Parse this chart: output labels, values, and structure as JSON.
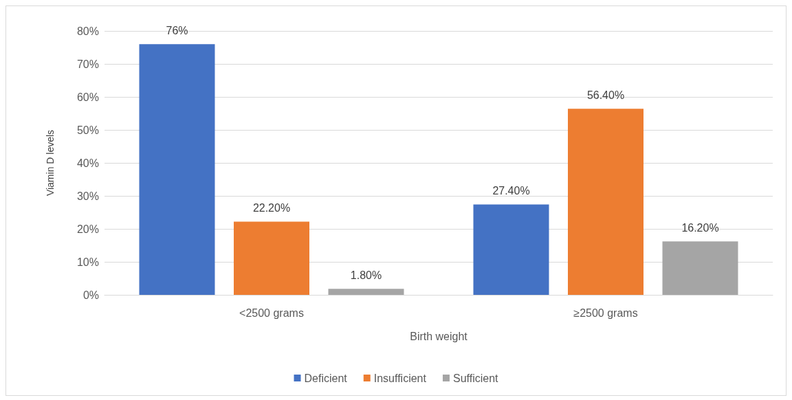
{
  "chart_data": {
    "type": "bar",
    "xlabel": "Birth weight",
    "ylabel": "Viamin D levels",
    "categories": [
      "<2500 grams",
      "≥2500 grams"
    ],
    "series": [
      {
        "name": "Deficient",
        "color": "#4472c4",
        "values": [
          76,
          27.4
        ],
        "value_labels": [
          "76%",
          "27.40%"
        ]
      },
      {
        "name": "Insufficient",
        "color": "#ed7d31",
        "values": [
          22.2,
          56.4
        ],
        "value_labels": [
          "22.20%",
          "56.40%"
        ]
      },
      {
        "name": "Sufficient",
        "color": "#a5a5a5",
        "values": [
          1.8,
          16.2
        ],
        "value_labels": [
          "1.80%",
          "16.20%"
        ]
      }
    ],
    "ylim": [
      0,
      80
    ],
    "yticks": [
      {
        "value": 0,
        "label": "0%"
      },
      {
        "value": 10,
        "label": "10%"
      },
      {
        "value": 20,
        "label": "20%"
      },
      {
        "value": 30,
        "label": "30%"
      },
      {
        "value": 40,
        "label": "40%"
      },
      {
        "value": 50,
        "label": "50%"
      },
      {
        "value": 60,
        "label": "60%"
      },
      {
        "value": 70,
        "label": "70%"
      },
      {
        "value": 80,
        "label": "80%"
      }
    ],
    "grid": "y",
    "legend": "bottom"
  }
}
